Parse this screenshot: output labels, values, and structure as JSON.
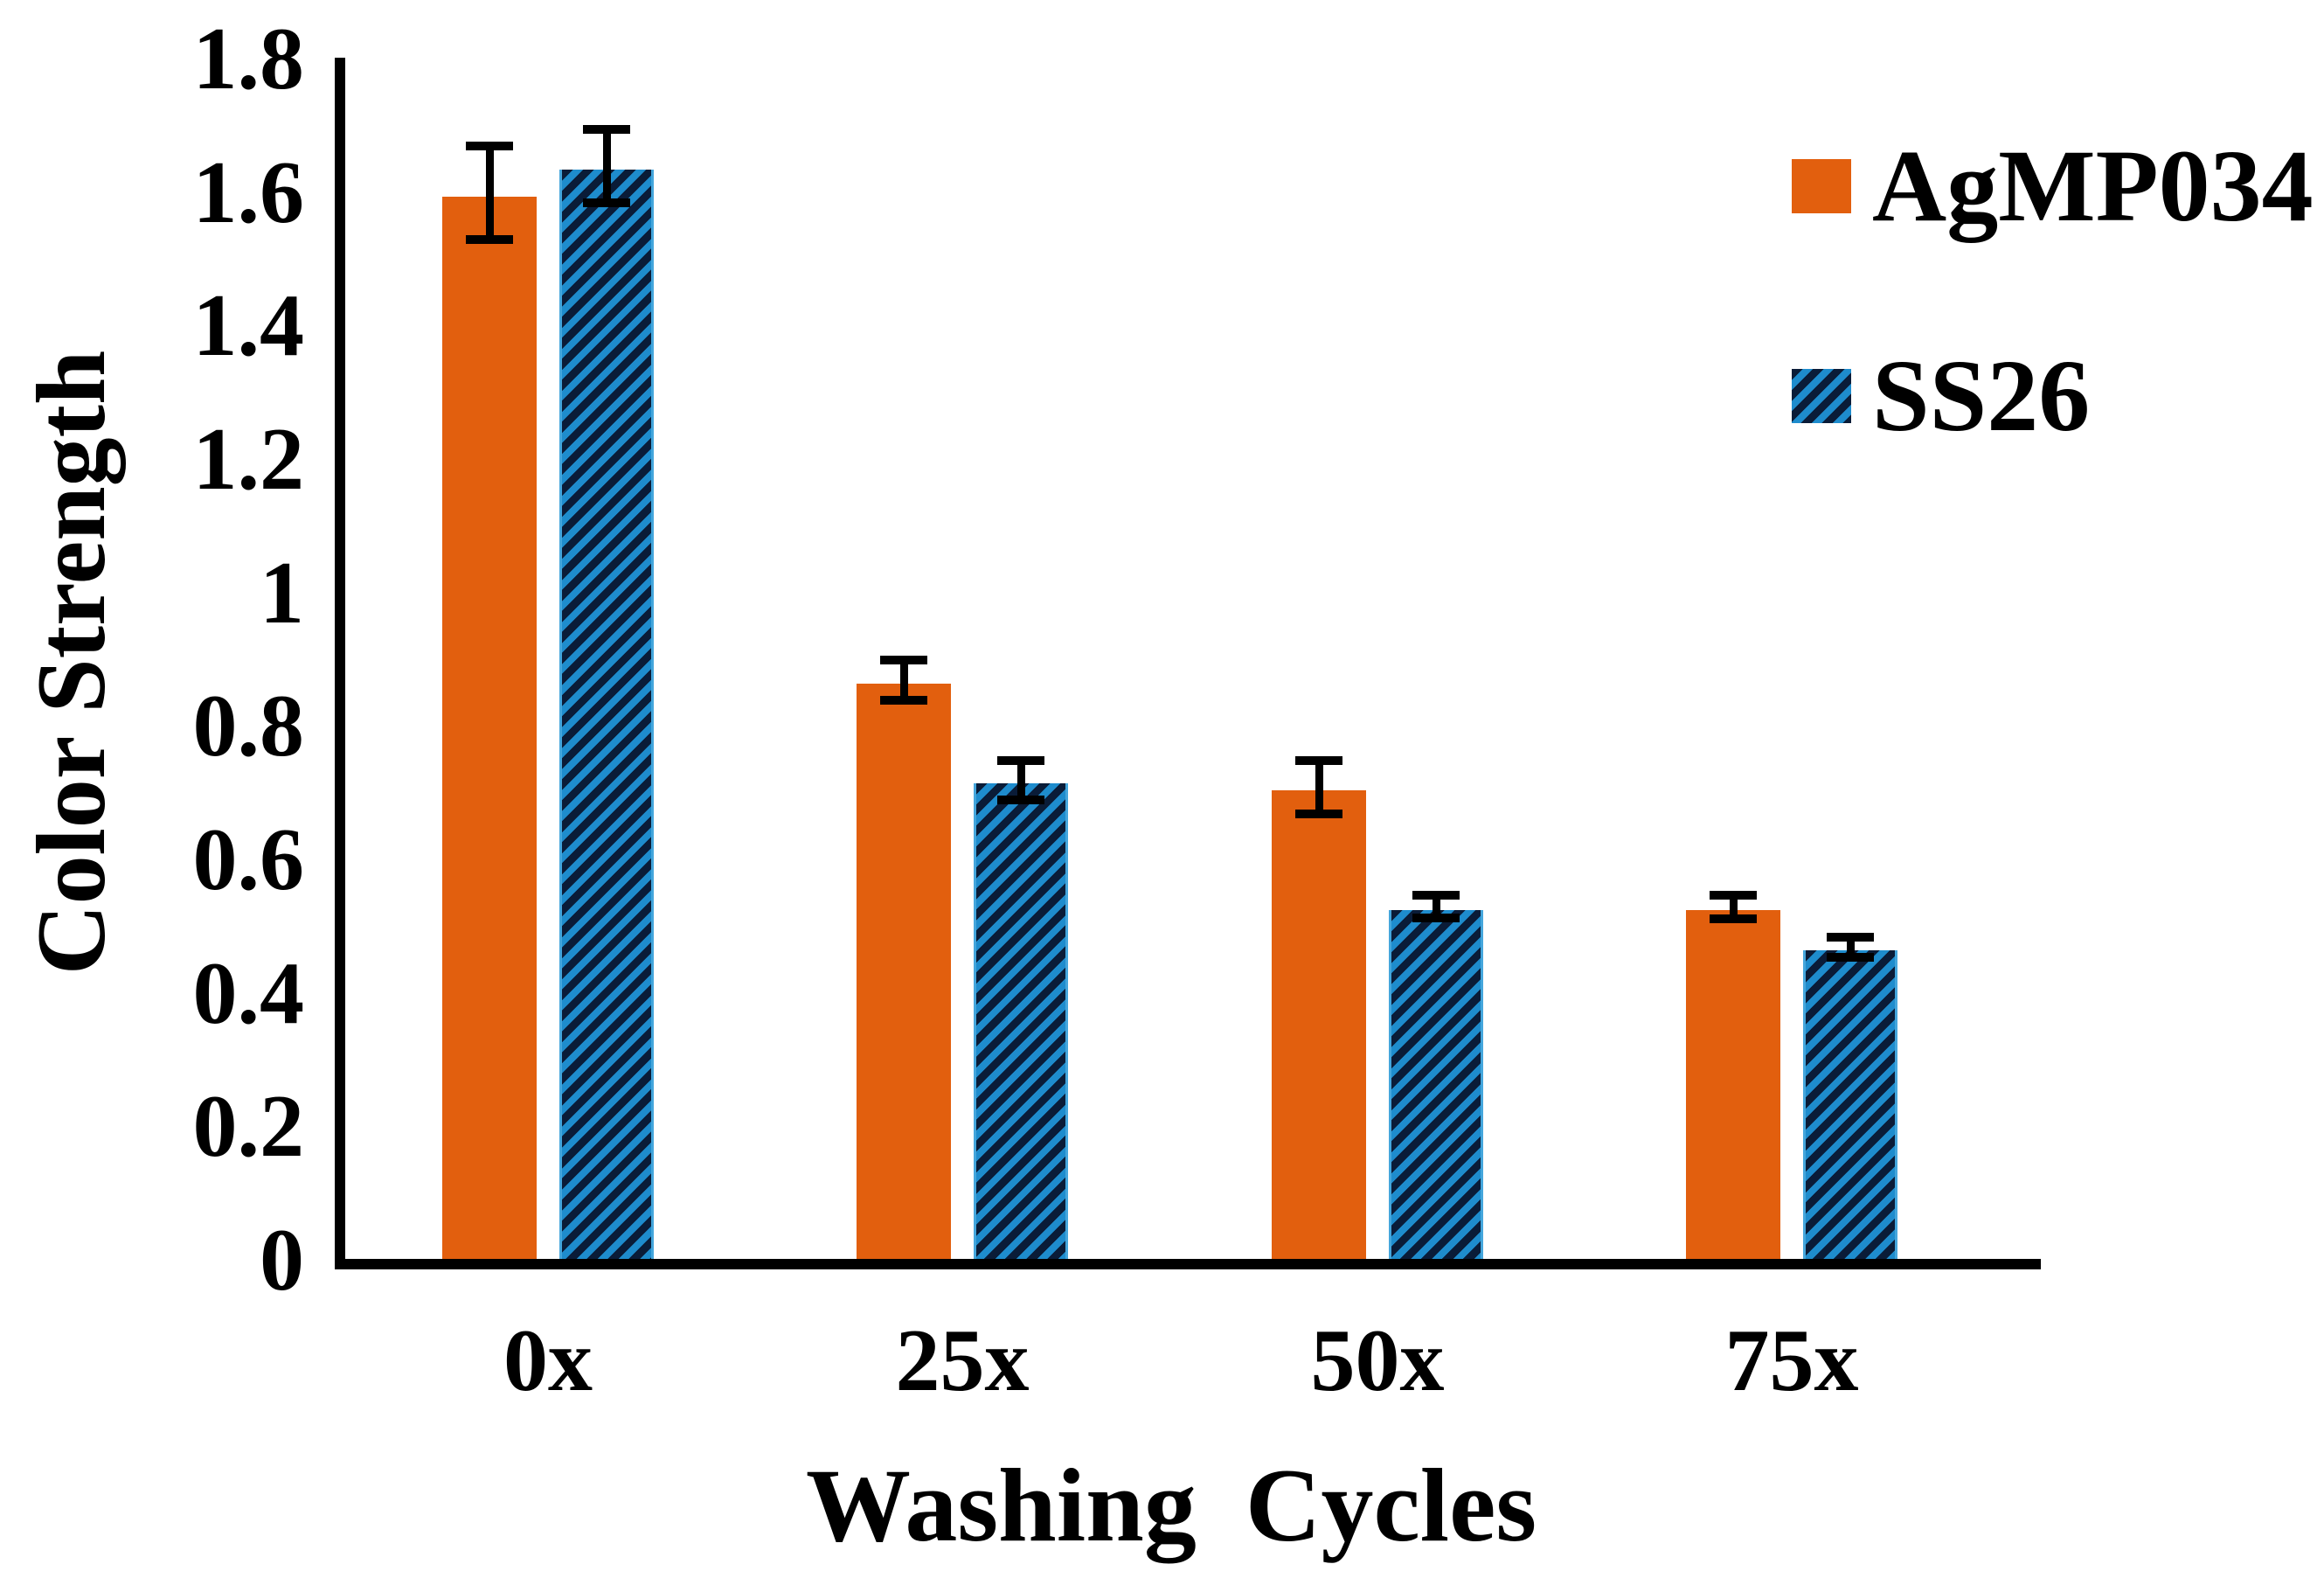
{
  "figure": {
    "background": "#FFFFFF",
    "axis_color": "#000000",
    "error_bar_color": "#000000"
  },
  "chart_data": {
    "type": "bar",
    "title": "",
    "xlabel": "Washing Cycles",
    "ylabel": "Color Strength",
    "categories": [
      "0x",
      "25x",
      "50x",
      "75x"
    ],
    "series": [
      {
        "name": "AgMP034",
        "values": [
          1.6,
          0.87,
          0.71,
          0.53
        ],
        "errors": [
          0.07,
          0.03,
          0.04,
          0.018
        ],
        "color": "#E25F0E",
        "pattern": "solid"
      },
      {
        "name": "SS26",
        "values": [
          1.64,
          0.72,
          0.53,
          0.47
        ],
        "errors": [
          0.055,
          0.03,
          0.017,
          0.015
        ],
        "color": "#1E8CCD",
        "pattern": "diagonal-hatch",
        "pattern_color": "#0A1C38"
      }
    ],
    "ylim": [
      0,
      1.8
    ],
    "ytick_step": 0.2,
    "yticks": [
      "0",
      "0.2",
      "0.4",
      "0.6",
      "0.8",
      "1",
      "1.2",
      "1.4",
      "1.6",
      "1.8"
    ],
    "grid": false,
    "legend_position": "top-right",
    "error_bars": true
  }
}
